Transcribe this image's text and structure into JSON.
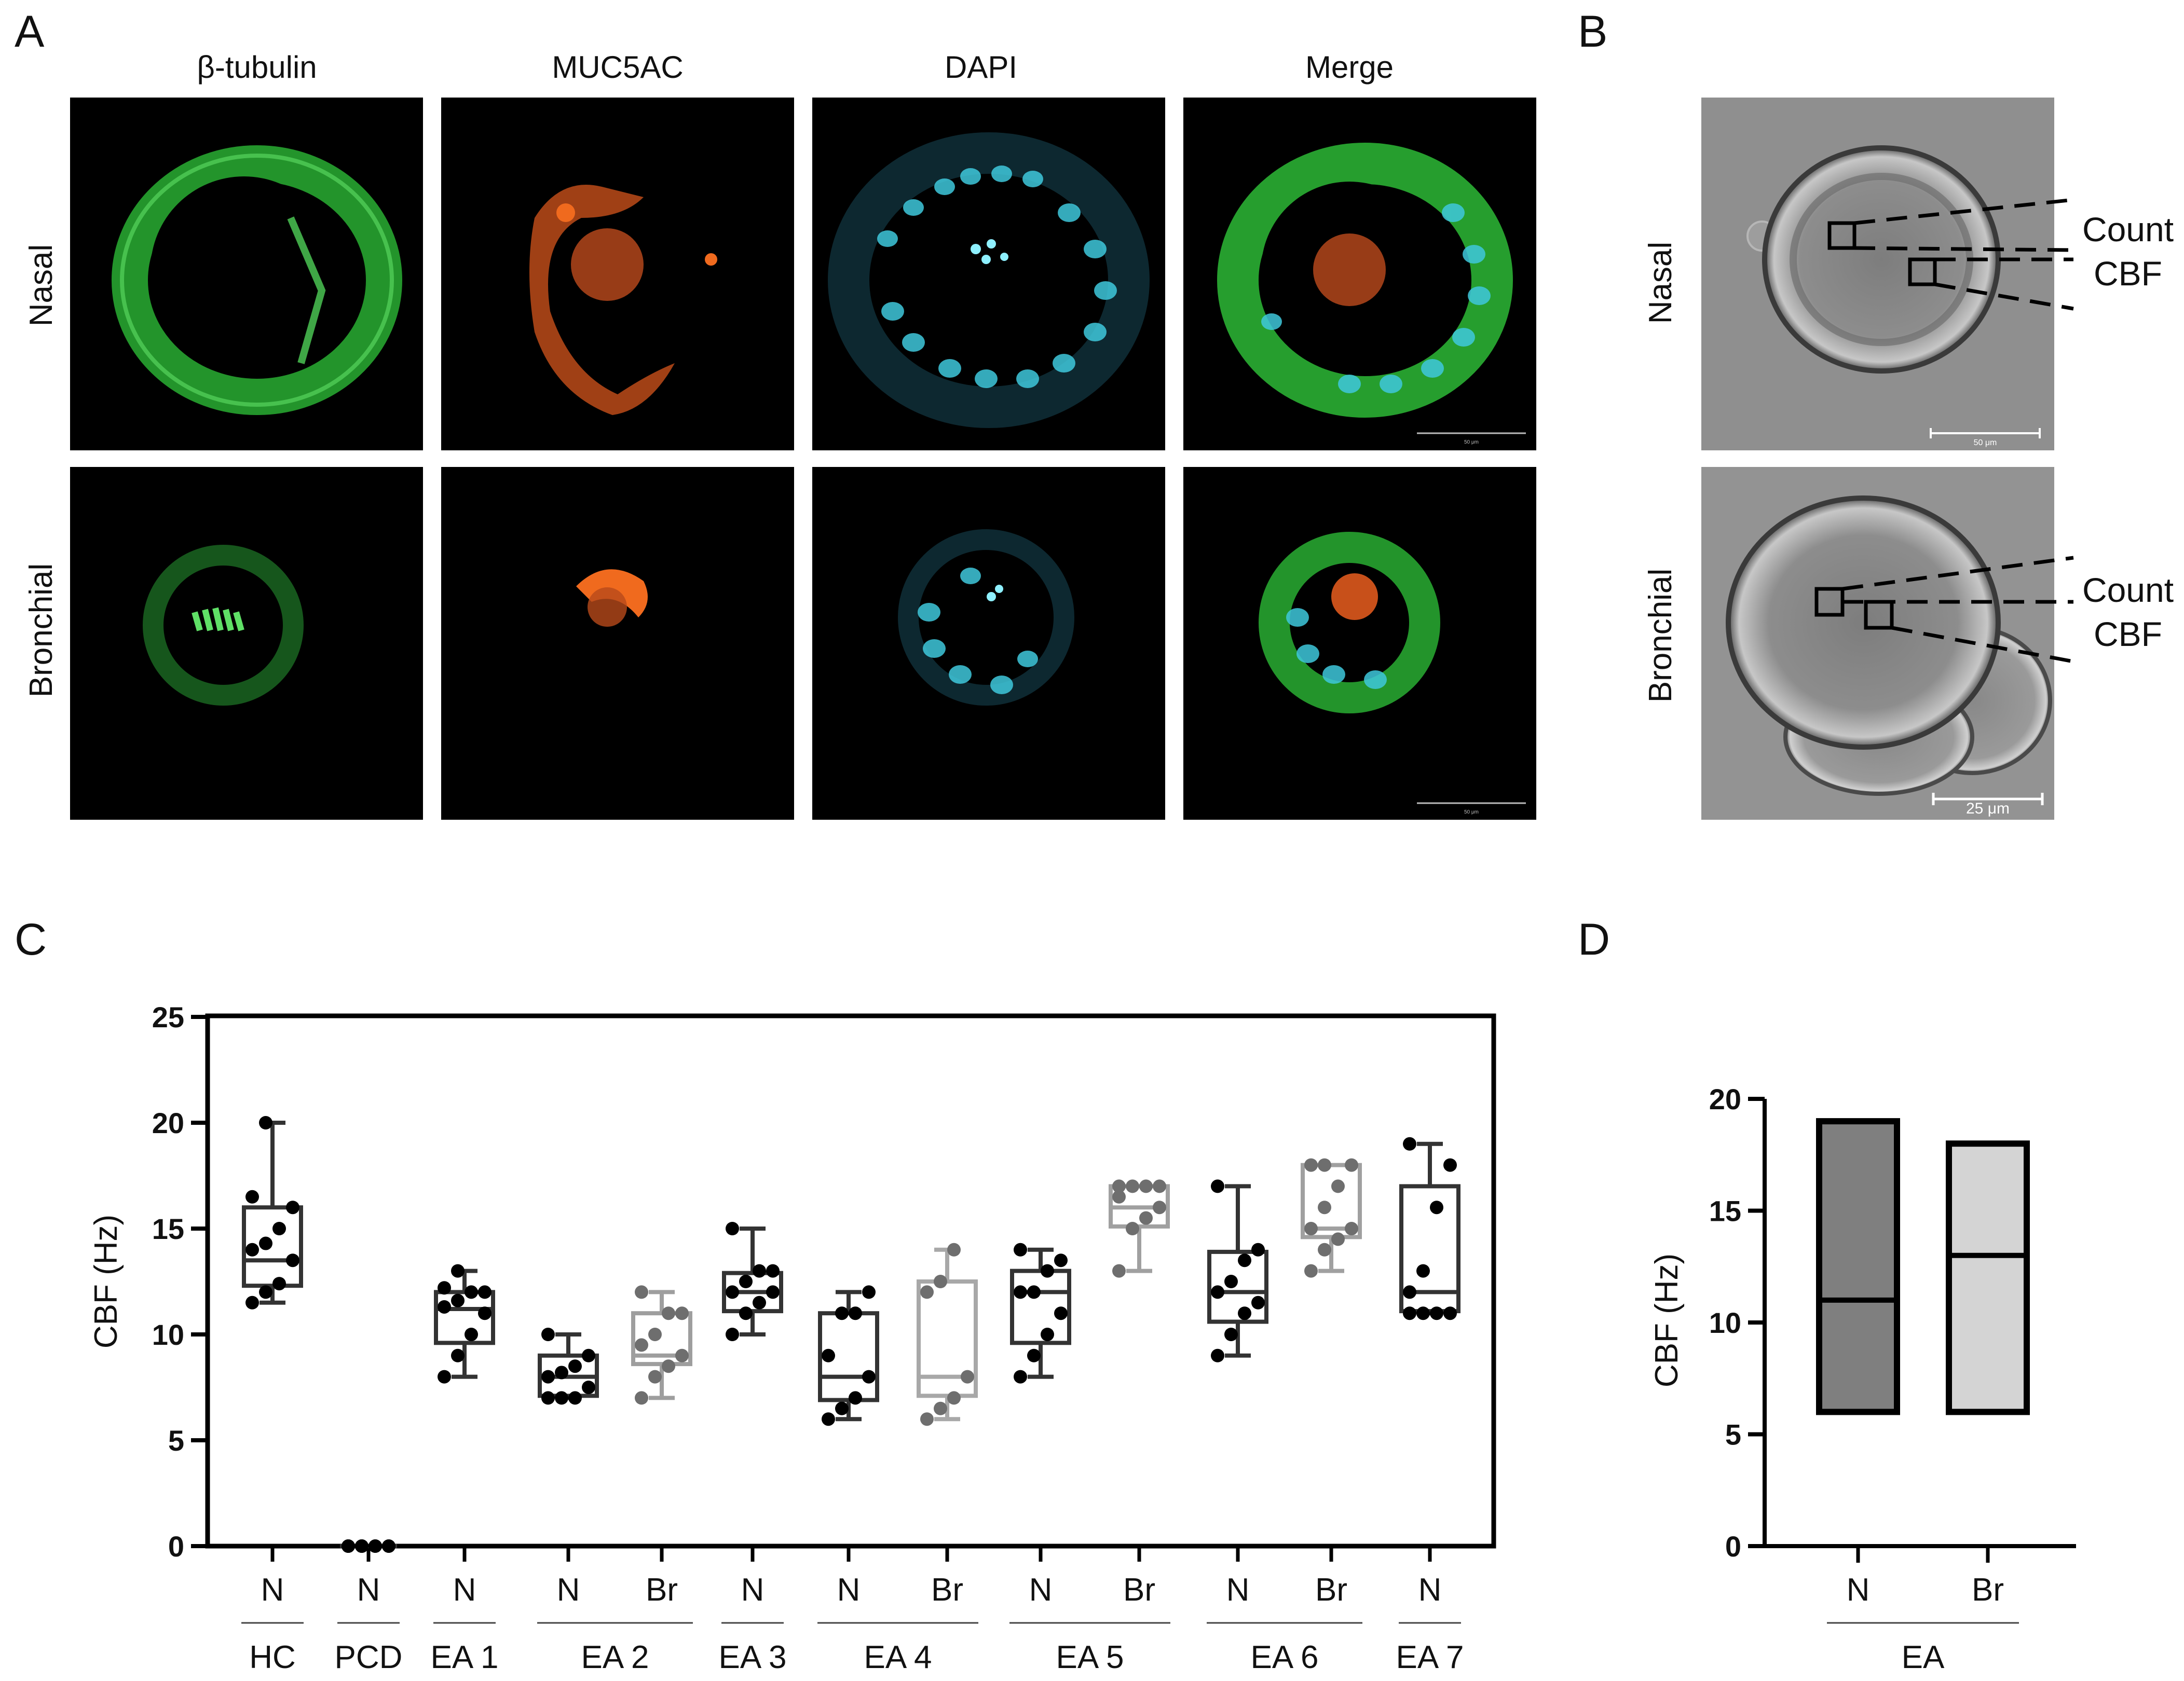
{
  "panels": {
    "A": "A",
    "B": "B",
    "C": "C",
    "D": "D"
  },
  "panel_a": {
    "columns": [
      "β-tubulin",
      "MUC5AC",
      "DAPI",
      "Merge"
    ],
    "rows": [
      "Nasal",
      "Bronchial"
    ],
    "scale_bar_label": "50 μm",
    "colors": {
      "tubulin": "#2fc63a",
      "muc5ac": "#f06a1e",
      "dapi": "#3fc8dc"
    }
  },
  "panel_b": {
    "rows": [
      "Nasal",
      "Bronchial"
    ],
    "annotation_line1": "Count",
    "annotation_line2": "CBF",
    "scale_bars": [
      "50 μm",
      "25 μm"
    ]
  },
  "chart_data": [
    {
      "type": "box",
      "panel": "C",
      "ylabel": "CBF (Hz)",
      "ylim": [
        0,
        25
      ],
      "yticks": [
        0,
        5,
        10,
        15,
        20,
        25
      ],
      "categories": [
        "N",
        "N",
        "N",
        "N",
        "Br",
        "N",
        "N",
        "Br",
        "N",
        "Br",
        "N",
        "Br",
        "N"
      ],
      "groups": [
        {
          "label": "HC",
          "span": [
            0,
            0
          ]
        },
        {
          "label": "PCD",
          "span": [
            1,
            1
          ]
        },
        {
          "label": "EA 1",
          "span": [
            2,
            2
          ]
        },
        {
          "label": "EA 2",
          "span": [
            3,
            4
          ]
        },
        {
          "label": "EA 3",
          "span": [
            5,
            5
          ]
        },
        {
          "label": "EA 4",
          "span": [
            6,
            7
          ]
        },
        {
          "label": "EA 5",
          "span": [
            8,
            9
          ]
        },
        {
          "label": "EA 6",
          "span": [
            10,
            11
          ]
        },
        {
          "label": "EA 7",
          "span": [
            12,
            12
          ]
        }
      ],
      "boxes": [
        {
          "min": 11.5,
          "q1": 12.3,
          "median": 13.5,
          "q3": 16,
          "max": 20,
          "color": "#333333",
          "points": [
            11.5,
            12,
            12.4,
            13.5,
            14,
            14.3,
            15,
            16,
            16.5,
            20
          ]
        },
        {
          "min": 0,
          "q1": 0,
          "median": 0,
          "q3": 0,
          "max": 0,
          "color": "#333333",
          "points": [
            0,
            0,
            0,
            0,
            0,
            0,
            0,
            0,
            0,
            0
          ]
        },
        {
          "min": 8,
          "q1": 9.6,
          "median": 11.2,
          "q3": 12,
          "max": 13,
          "color": "#333333",
          "points": [
            8,
            9,
            10,
            11,
            11.3,
            11.6,
            12,
            12,
            12.2,
            13
          ]
        },
        {
          "min": 7,
          "q1": 7.1,
          "median": 8,
          "q3": 9,
          "max": 10,
          "color": "#333333",
          "points": [
            7,
            7,
            7,
            7.5,
            8,
            8.2,
            8.5,
            9,
            10
          ]
        },
        {
          "min": 7,
          "q1": 8.6,
          "median": 9,
          "q3": 11,
          "max": 12,
          "color": "#9e9e9e",
          "points": [
            7,
            8,
            8.5,
            9,
            9.5,
            10,
            11,
            11,
            12
          ]
        },
        {
          "min": 10,
          "q1": 11.1,
          "median": 12,
          "q3": 12.9,
          "max": 15,
          "color": "#333333",
          "points": [
            10,
            11,
            11.5,
            12,
            12,
            12.5,
            13,
            13,
            15
          ]
        },
        {
          "min": 6,
          "q1": 6.9,
          "median": 8,
          "q3": 11,
          "max": 12,
          "color": "#333333",
          "points": [
            6,
            6.5,
            7,
            8,
            9,
            11,
            11,
            12
          ]
        },
        {
          "min": 6,
          "q1": 7.1,
          "median": 8,
          "q3": 12.5,
          "max": 14,
          "color": "#a8a8a8",
          "points": [
            6,
            6.5,
            7,
            8,
            12,
            12.5,
            14
          ]
        },
        {
          "min": 8,
          "q1": 9.6,
          "median": 12,
          "q3": 13,
          "max": 14,
          "color": "#333333",
          "points": [
            8,
            9,
            10,
            11,
            12,
            12,
            13,
            13.5,
            14
          ]
        },
        {
          "min": 13,
          "q1": 15.1,
          "median": 16,
          "q3": 17,
          "max": 17,
          "color": "#a0a0a0",
          "points": [
            13,
            15,
            15.5,
            16,
            16.5,
            17,
            17,
            17,
            17
          ]
        },
        {
          "min": 9,
          "q1": 10.6,
          "median": 12,
          "q3": 13.9,
          "max": 17,
          "color": "#333333",
          "points": [
            9,
            10,
            11,
            11.5,
            12,
            12.5,
            13.5,
            14,
            17
          ]
        },
        {
          "min": 13,
          "q1": 14.6,
          "median": 15,
          "q3": 18,
          "max": 18,
          "color": "#a0a0a0",
          "points": [
            13,
            14,
            14.5,
            15,
            15,
            16,
            17,
            18,
            18,
            18
          ]
        },
        {
          "min": 11,
          "q1": 11.1,
          "median": 12,
          "q3": 17,
          "max": 19,
          "color": "#333333",
          "points": [
            11,
            11,
            11,
            11,
            12,
            13,
            16,
            18,
            19
          ]
        }
      ],
      "point_colors": {
        "N": "#000000",
        "Br": "#6e6e6e"
      }
    },
    {
      "type": "floating_bar",
      "panel": "D",
      "ylabel": "CBF (Hz)",
      "ylim": [
        0,
        20
      ],
      "yticks": [
        0,
        5,
        10,
        15,
        20
      ],
      "categories": [
        "N",
        "Br"
      ],
      "group_label": "EA",
      "bars": [
        {
          "min": 6,
          "max": 19,
          "median": 11,
          "fill": "#7f7f7f"
        },
        {
          "min": 6,
          "max": 18,
          "median": 13,
          "fill": "#d4d4d4"
        }
      ]
    }
  ]
}
